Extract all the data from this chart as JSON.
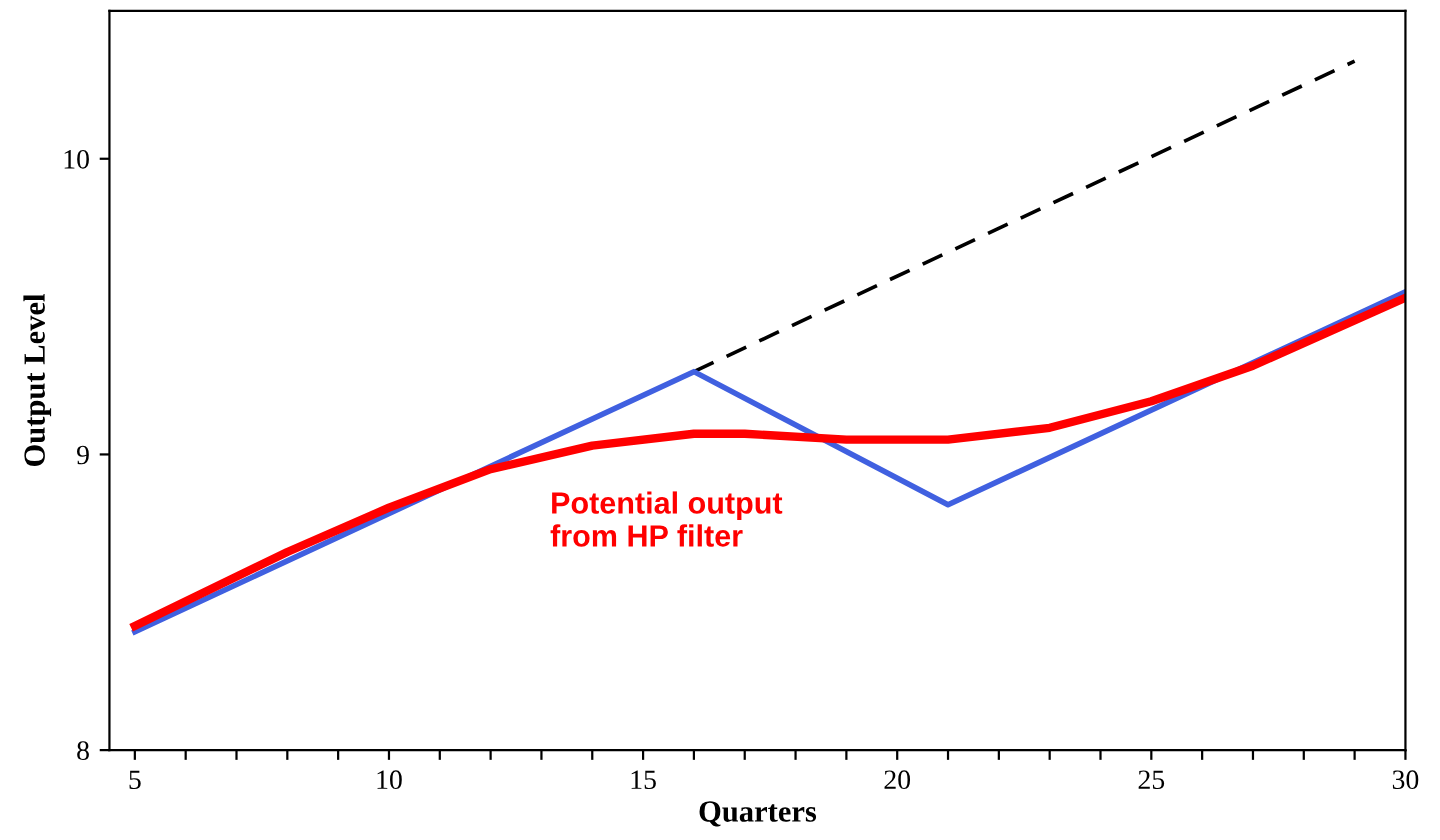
{
  "chart_data": {
    "type": "line",
    "xlabel": "Quarters",
    "ylabel": "Output Level",
    "xlim": [
      4.5,
      30
    ],
    "ylim": [
      8,
      10.5
    ],
    "xticks": [
      5,
      {
        "value": 6,
        "label": null
      },
      {
        "value": 7,
        "label": null
      },
      {
        "value": 8,
        "label": null
      },
      {
        "value": 9,
        "label": null
      },
      10,
      {
        "value": 11,
        "label": null
      },
      {
        "value": 12,
        "label": null
      },
      {
        "value": 13,
        "label": null
      },
      {
        "value": 14,
        "label": null
      },
      15,
      {
        "value": 16,
        "label": null
      },
      {
        "value": 17,
        "label": null
      },
      {
        "value": 18,
        "label": null
      },
      {
        "value": 19,
        "label": null
      },
      20,
      {
        "value": 21,
        "label": null
      },
      {
        "value": 22,
        "label": null
      },
      {
        "value": 23,
        "label": null
      },
      {
        "value": 24,
        "label": null
      },
      25,
      {
        "value": 26,
        "label": null
      },
      {
        "value": 27,
        "label": null
      },
      {
        "value": 28,
        "label": null
      },
      {
        "value": 29,
        "label": null
      },
      30
    ],
    "yticks": [
      8,
      9,
      10
    ],
    "grid": false,
    "series": [
      {
        "color": "#000000",
        "line_style": "dashed",
        "x": [
          16,
          29
        ],
        "values": [
          9.28,
          10.33
        ]
      },
      {
        "color": "#4060e0",
        "line_style": "solid",
        "x": [
          5,
          16,
          21,
          30
        ],
        "values": [
          8.4,
          9.28,
          8.83,
          9.55
        ]
      },
      {
        "color": "#ff0000",
        "line_style": "solid",
        "x": [
          5,
          8,
          10,
          12,
          14,
          16,
          17,
          19,
          21,
          23,
          25,
          27,
          30
        ],
        "values": [
          8.42,
          8.67,
          8.82,
          8.95,
          9.03,
          9.07,
          9.07,
          9.05,
          9.05,
          9.09,
          9.18,
          9.3,
          9.53
        ]
      }
    ],
    "annotations": [
      "Potential output\nfrom HP filter"
    ]
  }
}
